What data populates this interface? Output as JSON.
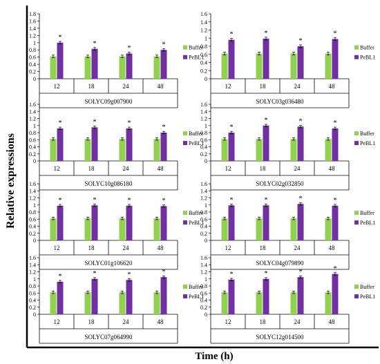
{
  "figure": {
    "ylabel": "Relative expressions",
    "xlabel": "Time (h)"
  },
  "chart_data": [
    {
      "type": "bar",
      "title": "SOLYC09g007900",
      "categories": [
        "12",
        "18",
        "24",
        "48"
      ],
      "ylim": [
        0,
        1.8
      ],
      "yticks": [
        0,
        0.2,
        0.4,
        0.6,
        0.8,
        1,
        1.2,
        1.4,
        1.6,
        1.8
      ],
      "series": [
        {
          "name": "Buffer",
          "color": "#92d050",
          "values": [
            0.62,
            0.62,
            0.62,
            0.62
          ]
        },
        {
          "name": "PeBL1",
          "color": "#7030a0",
          "values": [
            1.0,
            0.83,
            0.7,
            0.8
          ]
        }
      ],
      "significance": [
        "*",
        "*",
        "*",
        "*"
      ],
      "legend": "right"
    },
    {
      "type": "bar",
      "title": "SOLYC03g036480",
      "categories": [
        "12",
        "18",
        "24",
        "48"
      ],
      "ylim": [
        0,
        1.6
      ],
      "yticks": [
        0,
        0.2,
        0.4,
        0.6,
        0.8,
        1,
        1.2,
        1.4,
        1.6
      ],
      "series": [
        {
          "name": "Buffer",
          "color": "#92d050",
          "values": [
            0.62,
            0.62,
            0.62,
            0.62
          ]
        },
        {
          "name": "PeBL1",
          "color": "#7030a0",
          "values": [
            0.96,
            0.99,
            0.8,
            0.98
          ]
        }
      ],
      "significance": [
        "*",
        "*",
        "*",
        "*"
      ],
      "legend": "right"
    },
    {
      "type": "bar",
      "title": "SOLYC10g086180",
      "categories": [
        "12",
        "18",
        "24",
        "48"
      ],
      "ylim": [
        0,
        1.6
      ],
      "yticks": [
        0,
        0.2,
        0.4,
        0.6,
        0.8,
        1,
        1.2,
        1.4,
        1.6
      ],
      "series": [
        {
          "name": "Buffer",
          "color": "#92d050",
          "values": [
            0.62,
            0.62,
            0.62,
            0.62
          ]
        },
        {
          "name": "PeBL1",
          "color": "#7030a0",
          "values": [
            0.92,
            0.95,
            0.92,
            0.8
          ]
        }
      ],
      "significance": [
        "*",
        "*",
        "*",
        "*"
      ],
      "legend": "right"
    },
    {
      "type": "bar",
      "title": "SOLYC02g032850",
      "categories": [
        "12",
        "18",
        "24",
        "48"
      ],
      "ylim": [
        0,
        1.6
      ],
      "yticks": [
        0,
        0.2,
        0.4,
        0.6,
        0.8,
        1,
        1.2,
        1.4,
        1.6
      ],
      "series": [
        {
          "name": "Buffer",
          "color": "#92d050",
          "values": [
            0.62,
            0.62,
            0.62,
            0.62
          ]
        },
        {
          "name": "PeBL1",
          "color": "#7030a0",
          "values": [
            0.8,
            1.0,
            0.97,
            0.92
          ]
        }
      ],
      "significance": [
        "*",
        "*",
        "*",
        "*"
      ],
      "legend": "right"
    },
    {
      "type": "bar",
      "title": "SOLYC01g106620",
      "categories": [
        "12",
        "18",
        "24",
        "48"
      ],
      "ylim": [
        0,
        1.6
      ],
      "yticks": [
        0,
        0.2,
        0.4,
        0.6,
        0.8,
        1,
        1.2,
        1.4,
        1.6
      ],
      "series": [
        {
          "name": "Buffer",
          "color": "#92d050",
          "values": [
            0.62,
            0.62,
            0.62,
            0.62
          ]
        },
        {
          "name": "PeBL1",
          "color": "#7030a0",
          "values": [
            0.98,
            0.99,
            0.98,
            0.97
          ]
        }
      ],
      "significance": [
        "*",
        "*",
        "*",
        "*"
      ],
      "legend": "right"
    },
    {
      "type": "bar",
      "title": "SOLYC04g079890",
      "categories": [
        "12",
        "18",
        "24",
        "48"
      ],
      "ylim": [
        0,
        1.6
      ],
      "yticks": [
        0,
        0.2,
        0.4,
        0.6,
        0.8,
        1,
        1.2,
        1.4,
        1.6
      ],
      "series": [
        {
          "name": "Buffer",
          "color": "#92d050",
          "values": [
            0.62,
            0.62,
            0.62,
            0.62
          ]
        },
        {
          "name": "PeBL1",
          "color": "#7030a0",
          "values": [
            0.99,
            0.99,
            1.03,
            0.98
          ]
        }
      ],
      "significance": [
        "*",
        "*",
        "*",
        "*"
      ],
      "legend": "right"
    },
    {
      "type": "bar",
      "title": "SOLYC07g064990",
      "categories": [
        "12",
        "18",
        "24",
        "48"
      ],
      "ylim": [
        0,
        1.6
      ],
      "yticks": [
        0,
        0.2,
        0.4,
        0.6,
        0.8,
        1,
        1.2,
        1.4,
        1.6
      ],
      "series": [
        {
          "name": "Buffer",
          "color": "#92d050",
          "values": [
            0.62,
            0.62,
            0.62,
            0.62
          ]
        },
        {
          "name": "PeBL1",
          "color": "#7030a0",
          "values": [
            0.92,
            1.0,
            0.97,
            1.05
          ]
        }
      ],
      "significance": [
        "*",
        "*",
        "*",
        "*"
      ],
      "legend": "right"
    },
    {
      "type": "bar",
      "title": "SOLYC12g014500",
      "categories": [
        "12",
        "18",
        "24",
        "48"
      ],
      "ylim": [
        0,
        1.6
      ],
      "yticks": [
        0,
        0.2,
        0.4,
        0.6,
        0.8,
        1,
        1.2,
        1.4,
        1.6
      ],
      "series": [
        {
          "name": "Buffer",
          "color": "#92d050",
          "values": [
            0.62,
            0.62,
            0.62,
            0.62
          ]
        },
        {
          "name": "PeBL1",
          "color": "#7030a0",
          "values": [
            0.98,
            1.0,
            1.05,
            1.14
          ]
        }
      ],
      "significance": [
        "*",
        "*",
        "*",
        "*"
      ],
      "legend": "right"
    }
  ]
}
